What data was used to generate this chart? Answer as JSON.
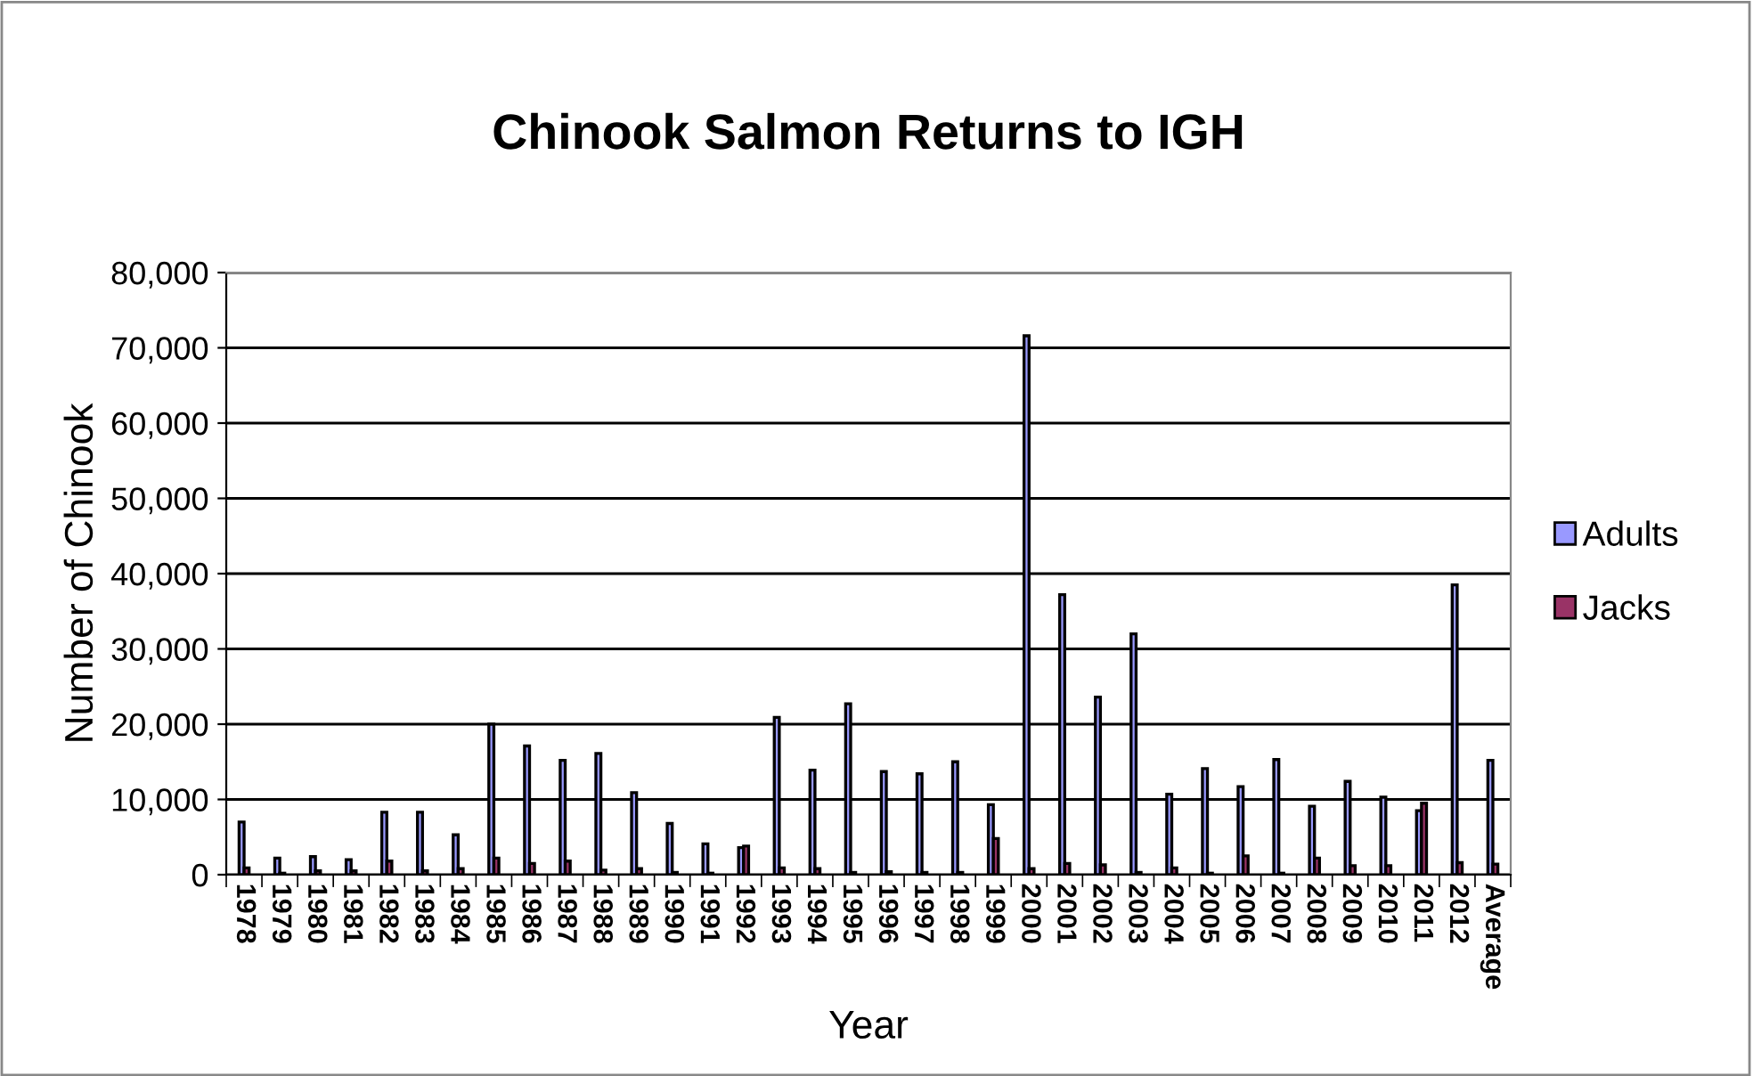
{
  "chart_data": {
    "type": "bar",
    "title": "Chinook Salmon Returns to IGH",
    "xlabel": "Year",
    "ylabel": "Number of Chinook",
    "categories": [
      "1978",
      "1979",
      "1980",
      "1981",
      "1982",
      "1983",
      "1984",
      "1985",
      "1986",
      "1987",
      "1988",
      "1989",
      "1990",
      "1991",
      "1992",
      "1993",
      "1994",
      "1995",
      "1996",
      "1997",
      "1998",
      "1999",
      "2000",
      "2001",
      "2002",
      "2003",
      "2004",
      "2005",
      "2006",
      "2007",
      "2008",
      "2009",
      "2010",
      "2011",
      "2012",
      "Average"
    ],
    "series": [
      {
        "name": "Adults",
        "color": "#9999ff",
        "values": [
          7000,
          2200,
          2400,
          2000,
          8300,
          8300,
          5300,
          20000,
          17100,
          15200,
          16100,
          10900,
          6800,
          4100,
          3600,
          20900,
          13900,
          22700,
          13700,
          13400,
          15000,
          9300,
          71600,
          37200,
          23600,
          32000,
          10700,
          14100,
          11700,
          15300,
          9100,
          12400,
          10300,
          8500,
          38500,
          15200
        ]
      },
      {
        "name": "Jacks",
        "color": "#993366",
        "values": [
          900,
          200,
          500,
          500,
          1800,
          500,
          800,
          2200,
          1500,
          1800,
          600,
          800,
          300,
          200,
          3800,
          900,
          800,
          300,
          400,
          300,
          300,
          4800,
          800,
          1500,
          1300,
          300,
          900,
          200,
          2500,
          200,
          2200,
          1200,
          1200,
          9500,
          1600,
          1400
        ]
      }
    ],
    "ylim": [
      0,
      80000
    ],
    "yticks": [
      {
        "value": 0,
        "label": "0"
      },
      {
        "value": 10000,
        "label": "10,000"
      },
      {
        "value": 20000,
        "label": "20,000"
      },
      {
        "value": 30000,
        "label": "30,000"
      },
      {
        "value": 40000,
        "label": "40,000"
      },
      {
        "value": 50000,
        "label": "50,000"
      },
      {
        "value": 60000,
        "label": "60,000"
      },
      {
        "value": 70000,
        "label": "70,000"
      },
      {
        "value": 80000,
        "label": "80,000"
      }
    ],
    "grid": "y",
    "legend": "right"
  }
}
